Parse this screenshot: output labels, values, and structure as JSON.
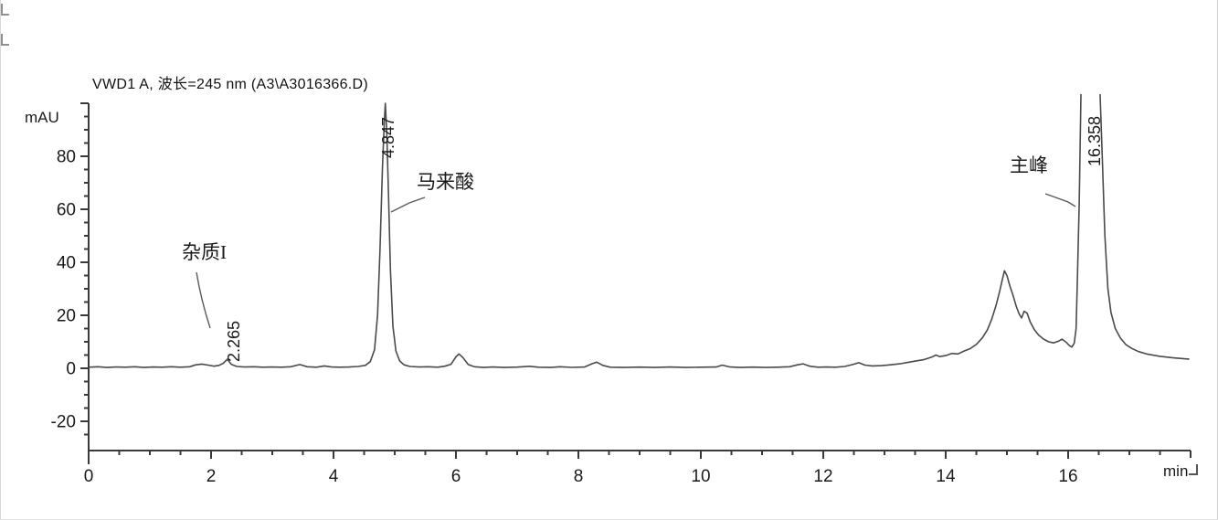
{
  "chart_data": {
    "type": "line",
    "title": "VWD1 A, 波长=245 nm (A3\\A3016366.D)",
    "ylabel": "mAU",
    "xlabel": "min",
    "xlabel_suffix_mark": "↵",
    "corner_marks": [
      "↵",
      "↵"
    ],
    "xlim": [
      0,
      18
    ],
    "ylim": [
      -30,
      100
    ],
    "x_ticks": [
      0,
      2,
      4,
      6,
      8,
      10,
      12,
      14,
      16
    ],
    "x_minor_step": 0.5,
    "y_ticks": [
      -20,
      0,
      20,
      40,
      60,
      80
    ],
    "y_minor_step": 5,
    "grid": false,
    "legend": "none",
    "detector": "VWD1 A",
    "wavelength_nm": 245,
    "datafile": "A3\\A3016366.D",
    "peaks": [
      {
        "rt_label": "2.265",
        "rt": 2.265,
        "annotation": "杂质I",
        "apex_mau": 3.4,
        "off_scale": false
      },
      {
        "rt_label": "4.847",
        "rt": 4.847,
        "annotation": "马来酸",
        "apex_mau": 100,
        "off_scale": false
      },
      {
        "rt_label": "16.358",
        "rt": 16.358,
        "annotation": "主峰",
        "apex_mau": 103,
        "off_scale": true
      }
    ],
    "unlabeled_features": [
      {
        "rt": 6.05,
        "apex_mau": 5.4
      },
      {
        "rt": 14.96,
        "apex_mau": 36.8
      },
      {
        "rt": 15.28,
        "apex_mau": 21.5
      }
    ],
    "series": [
      {
        "name": "VWD1 A signal",
        "points": [
          [
            0,
            0.4
          ],
          [
            0.15,
            0.6
          ],
          [
            0.3,
            0.3
          ],
          [
            0.45,
            0.5
          ],
          [
            0.6,
            0.4
          ],
          [
            0.75,
            0.6
          ],
          [
            0.9,
            0.3
          ],
          [
            1.05,
            0.5
          ],
          [
            1.2,
            0.4
          ],
          [
            1.35,
            0.6
          ],
          [
            1.5,
            0.4
          ],
          [
            1.65,
            0.6
          ],
          [
            1.75,
            1.3
          ],
          [
            1.85,
            1.6
          ],
          [
            1.95,
            1.2
          ],
          [
            2.05,
            0.8
          ],
          [
            2.13,
            1.1
          ],
          [
            2.2,
            1.9
          ],
          [
            2.265,
            3.4
          ],
          [
            2.33,
            1.5
          ],
          [
            2.42,
            0.7
          ],
          [
            2.55,
            0.5
          ],
          [
            2.7,
            0.6
          ],
          [
            2.85,
            0.4
          ],
          [
            3.0,
            0.5
          ],
          [
            3.15,
            0.4
          ],
          [
            3.3,
            0.6
          ],
          [
            3.45,
            1.4
          ],
          [
            3.57,
            0.6
          ],
          [
            3.72,
            0.4
          ],
          [
            3.85,
            0.9
          ],
          [
            3.97,
            0.5
          ],
          [
            4.1,
            0.4
          ],
          [
            4.25,
            0.5
          ],
          [
            4.4,
            0.7
          ],
          [
            4.52,
            1.1
          ],
          [
            4.6,
            2.5
          ],
          [
            4.67,
            7
          ],
          [
            4.72,
            20
          ],
          [
            4.76,
            45
          ],
          [
            4.8,
            76
          ],
          [
            4.83,
            93
          ],
          [
            4.847,
            100
          ],
          [
            4.87,
            89
          ],
          [
            4.9,
            64
          ],
          [
            4.93,
            37
          ],
          [
            4.97,
            16
          ],
          [
            5.02,
            6.5
          ],
          [
            5.08,
            2.8
          ],
          [
            5.15,
            1.3
          ],
          [
            5.25,
            0.7
          ],
          [
            5.4,
            0.5
          ],
          [
            5.55,
            0.6
          ],
          [
            5.7,
            0.4
          ],
          [
            5.82,
            0.8
          ],
          [
            5.92,
            1.5
          ],
          [
            6.0,
            4.3
          ],
          [
            6.05,
            5.4
          ],
          [
            6.12,
            3.9
          ],
          [
            6.2,
            1.4
          ],
          [
            6.3,
            0.6
          ],
          [
            6.45,
            0.3
          ],
          [
            6.6,
            0.5
          ],
          [
            6.8,
            0.3
          ],
          [
            7.0,
            0.45
          ],
          [
            7.2,
            0.75
          ],
          [
            7.35,
            0.4
          ],
          [
            7.55,
            0.3
          ],
          [
            7.7,
            0.6
          ],
          [
            7.9,
            0.35
          ],
          [
            8.1,
            0.5
          ],
          [
            8.22,
            1.7
          ],
          [
            8.3,
            2.3
          ],
          [
            8.4,
            1.1
          ],
          [
            8.52,
            0.4
          ],
          [
            8.75,
            0.3
          ],
          [
            9.0,
            0.45
          ],
          [
            9.25,
            0.3
          ],
          [
            9.5,
            0.5
          ],
          [
            9.75,
            0.3
          ],
          [
            10.0,
            0.4
          ],
          [
            10.25,
            0.5
          ],
          [
            10.35,
            1.2
          ],
          [
            10.48,
            0.5
          ],
          [
            10.65,
            0.3
          ],
          [
            10.85,
            0.45
          ],
          [
            11.05,
            0.3
          ],
          [
            11.25,
            0.4
          ],
          [
            11.45,
            0.6
          ],
          [
            11.58,
            1.3
          ],
          [
            11.67,
            1.7
          ],
          [
            11.78,
            0.8
          ],
          [
            11.92,
            0.4
          ],
          [
            12.05,
            0.5
          ],
          [
            12.2,
            0.4
          ],
          [
            12.35,
            0.7
          ],
          [
            12.48,
            1.4
          ],
          [
            12.58,
            2.1
          ],
          [
            12.68,
            1.2
          ],
          [
            12.8,
            0.9
          ],
          [
            12.95,
            1.0
          ],
          [
            13.1,
            1.3
          ],
          [
            13.25,
            1.7
          ],
          [
            13.4,
            2.3
          ],
          [
            13.52,
            2.8
          ],
          [
            13.65,
            3.3
          ],
          [
            13.77,
            4.2
          ],
          [
            13.84,
            5.0
          ],
          [
            13.9,
            4.4
          ],
          [
            14.0,
            4.8
          ],
          [
            14.1,
            5.6
          ],
          [
            14.2,
            5.4
          ],
          [
            14.3,
            6.5
          ],
          [
            14.4,
            7.4
          ],
          [
            14.5,
            9.0
          ],
          [
            14.6,
            11.5
          ],
          [
            14.68,
            14.5
          ],
          [
            14.75,
            18.5
          ],
          [
            14.82,
            23.5
          ],
          [
            14.88,
            29.0
          ],
          [
            14.93,
            34.0
          ],
          [
            14.96,
            36.8
          ],
          [
            15.0,
            35.0
          ],
          [
            15.05,
            31.0
          ],
          [
            15.1,
            27.5
          ],
          [
            15.15,
            23.5
          ],
          [
            15.2,
            20.5
          ],
          [
            15.24,
            19.0
          ],
          [
            15.28,
            21.5
          ],
          [
            15.33,
            20.8
          ],
          [
            15.38,
            17.5
          ],
          [
            15.45,
            14.5
          ],
          [
            15.52,
            12.5
          ],
          [
            15.6,
            11.0
          ],
          [
            15.68,
            10.0
          ],
          [
            15.76,
            9.6
          ],
          [
            15.84,
            10.2
          ],
          [
            15.9,
            11.0
          ],
          [
            15.96,
            10.0
          ],
          [
            16.02,
            8.6
          ],
          [
            16.06,
            8.0
          ],
          [
            16.1,
            9.5
          ],
          [
            16.13,
            15.0
          ],
          [
            16.15,
            32.0
          ],
          [
            16.18,
            62.0
          ],
          [
            16.21,
            105.0
          ],
          [
            16.52,
            105.0
          ],
          [
            16.56,
            78.0
          ],
          [
            16.6,
            50.0
          ],
          [
            16.65,
            30.0
          ],
          [
            16.7,
            21.0
          ],
          [
            16.77,
            15.0
          ],
          [
            16.85,
            11.5
          ],
          [
            16.94,
            9.0
          ],
          [
            17.04,
            7.5
          ],
          [
            17.15,
            6.3
          ],
          [
            17.3,
            5.3
          ],
          [
            17.5,
            4.5
          ],
          [
            17.7,
            4.0
          ],
          [
            17.9,
            3.6
          ],
          [
            17.97,
            3.5
          ]
        ]
      }
    ]
  }
}
